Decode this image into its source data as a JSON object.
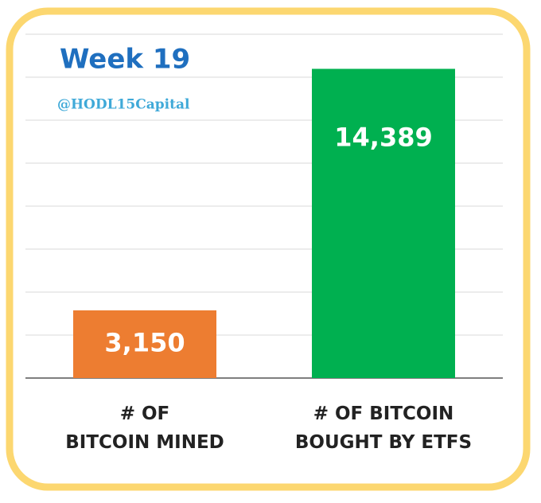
{
  "chart_data": {
    "type": "bar",
    "title": "Week 19",
    "subtitle": "@HODL15Capital",
    "categories": [
      "# OF\nBITCOIN MINED",
      "# OF BITCOIN\nBOUGHT BY ETFS"
    ],
    "values": [
      3150,
      14389
    ],
    "value_labels": [
      "3,150",
      "14,389"
    ],
    "colors": [
      "#ed7d31",
      "#00b050"
    ],
    "ylim": [
      0,
      16000
    ],
    "yticks": [
      0,
      2000,
      4000,
      6000,
      8000,
      10000,
      12000,
      14000,
      16000
    ],
    "grid": true
  }
}
